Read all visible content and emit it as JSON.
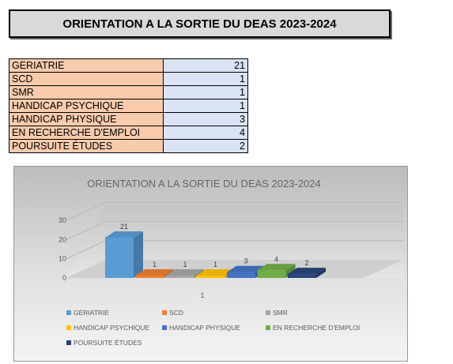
{
  "header": {
    "title": "ORIENTATION A LA SORTIE DU DEAS 2023-2024"
  },
  "table": {
    "rows": [
      {
        "label": "GERIATRIE",
        "value": "21"
      },
      {
        "label": "SCD",
        "value": "1"
      },
      {
        "label": "SMR",
        "value": "1"
      },
      {
        "label": "HANDICAP PSYCHIQUE",
        "value": "1"
      },
      {
        "label": "HANDICAP PHYSIQUE",
        "value": "3"
      },
      {
        "label": "EN RECHERCHE D'EMPLOI",
        "value": "4"
      },
      {
        "label": "POURSUITE ÉTUDES",
        "value": "2"
      }
    ]
  },
  "chart_data": {
    "type": "bar",
    "title": "ORIENTATION A LA SORTIE DU DEAS 2023-2024",
    "categories": [
      "GERIATRIE",
      "SCD",
      "SMR",
      "HANDICAP PSYCHIQUE",
      "HANDICAP PHYSIQUE",
      "EN RECHERCHE D'EMPLOI",
      "POURSUITE ÉTUDES"
    ],
    "values": [
      21,
      1,
      1,
      1,
      3,
      4,
      2
    ],
    "colors": [
      "#5b9bd5",
      "#ed7d31",
      "#a5a5a5",
      "#ffc000",
      "#4472c4",
      "#70ad47",
      "#264478"
    ],
    "yticks": [
      "0",
      "10",
      "20",
      "30"
    ],
    "ylim": [
      0,
      30
    ],
    "xtick_label": "1",
    "legend_position": "bottom",
    "grid": true
  }
}
